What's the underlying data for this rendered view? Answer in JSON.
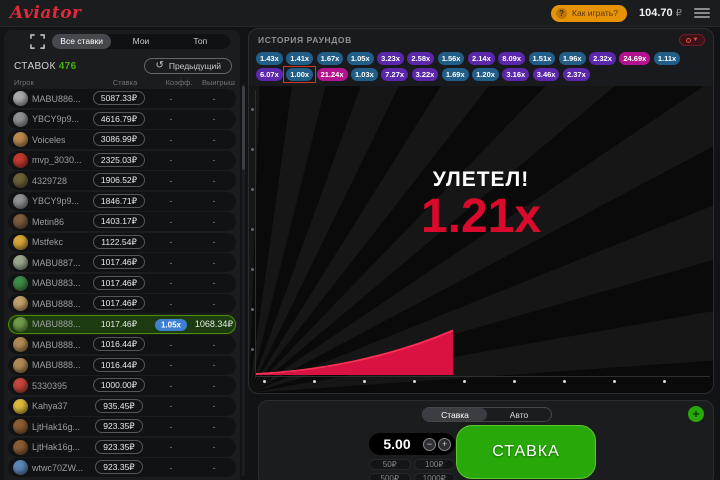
{
  "topbar": {
    "logo": "Aviator",
    "how_to_play": "Как играть?",
    "balance": "104.70",
    "currency": "₽"
  },
  "sidebar": {
    "tabs": [
      {
        "label": "Все ставки",
        "active": true
      },
      {
        "label": "Мои",
        "active": false
      },
      {
        "label": "Топ",
        "active": false
      }
    ],
    "bets_label": "СТАВОК",
    "bets_count": "476",
    "previous_button": "Предыдущий",
    "columns": [
      "Игрок",
      "Ставка",
      "Коэфф.",
      "Выигрыш"
    ],
    "rows": [
      {
        "player": "MABU886...",
        "bet": "5087.33₽",
        "coef": "-",
        "win": "-",
        "won": false,
        "avatar_color": "#a9a9ad"
      },
      {
        "player": "YBCY9p9...",
        "bet": "4616.79₽",
        "coef": "-",
        "win": "-",
        "won": false,
        "avatar_color": "#8f9093"
      },
      {
        "player": "Voiceles",
        "bet": "3086.99₽",
        "coef": "-",
        "win": "-",
        "won": false,
        "avatar_color": "#b9894e"
      },
      {
        "player": "mvp_3030...",
        "bet": "2325.03₽",
        "coef": "-",
        "win": "-",
        "won": false,
        "avatar_color": "#c0392e"
      },
      {
        "player": "4329728",
        "bet": "1906.52₽",
        "coef": "-",
        "win": "-",
        "won": false,
        "avatar_color": "#6b6136"
      },
      {
        "player": "YBCY9p9...",
        "bet": "1846.71₽",
        "coef": "-",
        "win": "-",
        "won": false,
        "avatar_color": "#8f9093"
      },
      {
        "player": "Metin86",
        "bet": "1403.17₽",
        "coef": "-",
        "win": "-",
        "won": false,
        "avatar_color": "#7d5a3c"
      },
      {
        "player": "Mstfekc",
        "bet": "1122.54₽",
        "coef": "-",
        "win": "-",
        "won": false,
        "avatar_color": "#d7a43a"
      },
      {
        "player": "MABU887...",
        "bet": "1017.46₽",
        "coef": "-",
        "win": "-",
        "won": false,
        "avatar_color": "#9aa78c"
      },
      {
        "player": "MABU883...",
        "bet": "1017.46₽",
        "coef": "-",
        "win": "-",
        "won": false,
        "avatar_color": "#3e8a46"
      },
      {
        "player": "MABU888...",
        "bet": "1017.46₽",
        "coef": "-",
        "win": "-",
        "won": false,
        "avatar_color": "#c2a06a"
      },
      {
        "player": "MABU888...",
        "bet": "1017.46₽",
        "coef": "1.05x",
        "win": "1068.34₽",
        "won": true,
        "avatar_color": "#6f9a4a"
      },
      {
        "player": "MABU888...",
        "bet": "1016.44₽",
        "coef": "-",
        "win": "-",
        "won": false,
        "avatar_color": "#b08a55"
      },
      {
        "player": "MABU888...",
        "bet": "1016.44₽",
        "coef": "-",
        "win": "-",
        "won": false,
        "avatar_color": "#b08a55"
      },
      {
        "player": "5330395",
        "bet": "1000.00₽",
        "coef": "-",
        "win": "-",
        "won": false,
        "avatar_color": "#c4463c"
      },
      {
        "player": "Kahya37",
        "bet": "935.45₽",
        "coef": "-",
        "win": "-",
        "won": false,
        "avatar_color": "#d8b93c"
      },
      {
        "player": "LjtHak16g...",
        "bet": "923.35₽",
        "coef": "-",
        "win": "-",
        "won": false,
        "avatar_color": "#8a5c34"
      },
      {
        "player": "LjtHak16g...",
        "bet": "923.35₽",
        "coef": "-",
        "win": "-",
        "won": false,
        "avatar_color": "#8a5c34"
      },
      {
        "player": "wtwc70ZW...",
        "bet": "923.35₽",
        "coef": "-",
        "win": "-",
        "won": false,
        "avatar_color": "#5b86b5"
      }
    ]
  },
  "history": {
    "title": "ИСТОРИЯ РАУНДОВ",
    "rows": [
      [
        {
          "v": "1.43x",
          "c": "blue"
        },
        {
          "v": "1.41x",
          "c": "blue"
        },
        {
          "v": "1.67x",
          "c": "blue"
        },
        {
          "v": "1.05x",
          "c": "blue"
        },
        {
          "v": "3.23x",
          "c": "purple"
        },
        {
          "v": "2.58x",
          "c": "purple"
        },
        {
          "v": "1.56x",
          "c": "blue"
        },
        {
          "v": "2.14x",
          "c": "purple"
        },
        {
          "v": "8.09x",
          "c": "purple"
        },
        {
          "v": "1.51x",
          "c": "blue"
        },
        {
          "v": "1.96x",
          "c": "blue"
        },
        {
          "v": "2.32x",
          "c": "purple"
        },
        {
          "v": "24.69x",
          "c": "magenta"
        },
        {
          "v": "1.11x",
          "c": "blue"
        }
      ],
      [
        {
          "v": "6.07x",
          "c": "purple"
        },
        {
          "v": "1.00x",
          "c": "blue",
          "current": true
        },
        {
          "v": "21.24x",
          "c": "magenta"
        },
        {
          "v": "1.03x",
          "c": "blue"
        },
        {
          "v": "7.27x",
          "c": "purple"
        },
        {
          "v": "3.22x",
          "c": "purple"
        },
        {
          "v": "1.69x",
          "c": "blue"
        },
        {
          "v": "1.20x",
          "c": "blue"
        },
        {
          "v": "3.16x",
          "c": "purple"
        },
        {
          "v": "3.46x",
          "c": "purple"
        },
        {
          "v": "2.37x",
          "c": "purple"
        }
      ]
    ]
  },
  "game": {
    "status": "УЛЕТЕЛ!",
    "multiplier": "1.21x"
  },
  "bet_panel": {
    "tabs": [
      {
        "label": "Ставка",
        "active": true
      },
      {
        "label": "Авто",
        "active": false
      }
    ],
    "amount": "5.00",
    "minus": "−",
    "plus": "+",
    "quick_bets": [
      "50₽",
      "100₽",
      "500₽",
      "1000₽"
    ],
    "bet_button": "СТАВКА"
  },
  "colors": {
    "green": "#28a909",
    "orange": "#e69308",
    "red": "#d90a2c",
    "logo_red": "#e0293e",
    "chip_blue": "#215e88",
    "chip_purple": "#5b27ab",
    "chip_magenta": "#b3138e",
    "coef_blue": "#3f7fd2",
    "win_row_bg": "#1d3b10",
    "win_row_border": "#4e8f00",
    "curve_fill": "#da1243",
    "curve_edge": "#ff2e55"
  }
}
